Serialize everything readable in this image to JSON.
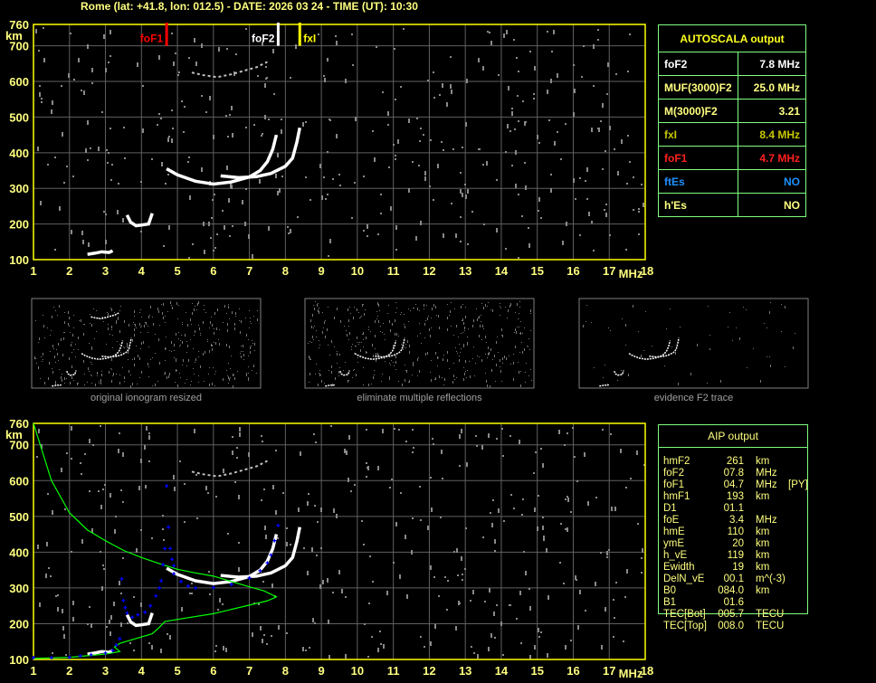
{
  "title": "Rome (lat: +41.8, lon: 012.5) - DATE: 2026 03 24 - TIME (UT): 10:30",
  "colors": {
    "axis": "#ffff00",
    "grid": "#606060",
    "tick_text": "#ffff80",
    "trace": "#ffffff",
    "profile": "#00ff00",
    "aip_points": "#0000ff",
    "foF1_marker": "#ff0000",
    "foF2_marker": "#ffffff",
    "fxI_marker": "#ffff00",
    "table_border": "#80ff80"
  },
  "autoscala": {
    "title": "AUTOSCALA output",
    "rows": [
      {
        "label": "foF2",
        "value": "7.8 MHz",
        "color": "#ffffff"
      },
      {
        "label": "MUF(3000)F2",
        "value": "25.0 MHz",
        "color": "#ffff80"
      },
      {
        "label": "M(3000)F2",
        "value": "3.21",
        "color": "#ffff80"
      },
      {
        "label": "fxI",
        "value": "8.4 MHz",
        "color": "#c8c800"
      },
      {
        "label": "foF1",
        "value": "4.7 MHz",
        "color": "#ff2020"
      },
      {
        "label": "ftEs",
        "value": "NO",
        "color": "#1e90ff"
      },
      {
        "label": "h'Es",
        "value": "NO",
        "color": "#ffff80"
      }
    ]
  },
  "aip": {
    "title": "AIP output",
    "rows": [
      {
        "name": "hmF2",
        "value": "261",
        "unit": "km",
        "note": ""
      },
      {
        "name": "foF2",
        "value": "07.8",
        "unit": "MHz",
        "note": ""
      },
      {
        "name": "foF1",
        "value": "04.7",
        "unit": "MHz",
        "note": "[PY]"
      },
      {
        "name": "hmF1",
        "value": "193",
        "unit": "km",
        "note": ""
      },
      {
        "name": "D1",
        "value": "01.1",
        "unit": "",
        "note": ""
      },
      {
        "name": "foE",
        "value": "3.4",
        "unit": "MHz",
        "note": ""
      },
      {
        "name": "hmE",
        "value": "110",
        "unit": "km",
        "note": ""
      },
      {
        "name": "ymE",
        "value": "20",
        "unit": "km",
        "note": ""
      },
      {
        "name": "h_vE",
        "value": "119",
        "unit": "km",
        "note": ""
      },
      {
        "name": "Ewidth",
        "value": "19",
        "unit": "km",
        "note": ""
      },
      {
        "name": "DelN_vE",
        "value": "00.1",
        "unit": "m^(-3)",
        "note": ""
      },
      {
        "name": "B0",
        "value": "084.0",
        "unit": "km",
        "note": ""
      },
      {
        "name": "B1",
        "value": "01.6",
        "unit": "",
        "note": ""
      },
      {
        "name": "TEC[Bot]",
        "value": "005.7",
        "unit": "TECU",
        "note": ""
      },
      {
        "name": "TEC[Top]",
        "value": "008.0",
        "unit": "TECU",
        "note": ""
      }
    ]
  },
  "thumbnails": [
    {
      "caption": "original ionogram resized"
    },
    {
      "caption": "eliminate multiple reflections"
    },
    {
      "caption": "evidence F2 trace"
    }
  ],
  "chart_data": [
    {
      "type": "scatter",
      "xlabel": "MHz",
      "ylabel": "km",
      "xlim": [
        1,
        18
      ],
      "ylim": [
        100,
        760
      ],
      "x_ticks": [
        "1",
        "2",
        "3",
        "4",
        "5",
        "6",
        "7",
        "8",
        "9",
        "10",
        "11",
        "12",
        "13",
        "14",
        "15",
        "16",
        "17",
        "18"
      ],
      "y_ticks": [
        "100",
        "200",
        "300",
        "400",
        "500",
        "600",
        "700",
        "760"
      ],
      "grid": true,
      "markers": [
        {
          "label": "foF1",
          "freq": 4.7,
          "color": "#ff0000"
        },
        {
          "label": "foF2",
          "freq": 7.8,
          "color": "#ffffff"
        },
        {
          "label": "fxI",
          "freq": 8.4,
          "color": "#ffff00"
        }
      ],
      "traces": [
        {
          "layer": "E",
          "points": [
            [
              2.5,
              115
            ],
            [
              2.7,
              118
            ],
            [
              2.9,
              122
            ],
            [
              3.1,
              120
            ],
            [
              3.2,
              125
            ]
          ]
        },
        {
          "layer": "F1",
          "points": [
            [
              3.6,
              225
            ],
            [
              3.7,
              205
            ],
            [
              3.85,
              195
            ],
            [
              4.0,
              197
            ],
            [
              4.2,
              200
            ],
            [
              4.3,
              230
            ]
          ]
        },
        {
          "layer": "F2-ordinary",
          "points": [
            [
              4.7,
              355
            ],
            [
              5.0,
              338
            ],
            [
              5.5,
              320
            ],
            [
              6.0,
              312
            ],
            [
              6.5,
              318
            ],
            [
              7.0,
              332
            ],
            [
              7.3,
              350
            ],
            [
              7.5,
              375
            ],
            [
              7.65,
              410
            ],
            [
              7.75,
              450
            ]
          ]
        },
        {
          "layer": "F2-extraordinary",
          "points": [
            [
              6.2,
              335
            ],
            [
              6.7,
              330
            ],
            [
              7.2,
              333
            ],
            [
              7.6,
              342
            ],
            [
              8.0,
              362
            ],
            [
              8.2,
              385
            ],
            [
              8.32,
              430
            ],
            [
              8.4,
              470
            ]
          ]
        },
        {
          "layer": "second-hop",
          "points": [
            [
              5.4,
              625
            ],
            [
              5.7,
              618
            ],
            [
              6.1,
              612
            ],
            [
              6.5,
              620
            ],
            [
              7.2,
              640
            ],
            [
              7.5,
              655
            ]
          ]
        }
      ]
    },
    {
      "type": "scatter",
      "xlabel": "MHz",
      "ylabel": "km",
      "xlim": [
        1,
        18
      ],
      "ylim": [
        100,
        760
      ],
      "x_ticks": [
        "1",
        "2",
        "3",
        "4",
        "5",
        "6",
        "7",
        "8",
        "9",
        "10",
        "11",
        "12",
        "13",
        "14",
        "15",
        "16",
        "17",
        "18"
      ],
      "y_ticks": [
        "100",
        "200",
        "300",
        "400",
        "500",
        "600",
        "700",
        "760"
      ],
      "grid": true,
      "traces": [
        {
          "layer": "E",
          "points": [
            [
              2.5,
              115
            ],
            [
              2.7,
              118
            ],
            [
              2.9,
              122
            ],
            [
              3.1,
              120
            ],
            [
              3.2,
              125
            ]
          ]
        },
        {
          "layer": "F1",
          "points": [
            [
              3.6,
              225
            ],
            [
              3.7,
              205
            ],
            [
              3.85,
              195
            ],
            [
              4.0,
              197
            ],
            [
              4.2,
              200
            ],
            [
              4.3,
              230
            ]
          ]
        },
        {
          "layer": "F2-ordinary",
          "points": [
            [
              4.7,
              355
            ],
            [
              5.0,
              338
            ],
            [
              5.5,
              320
            ],
            [
              6.0,
              312
            ],
            [
              6.5,
              318
            ],
            [
              7.0,
              332
            ],
            [
              7.3,
              350
            ],
            [
              7.5,
              375
            ],
            [
              7.65,
              410
            ],
            [
              7.75,
              450
            ]
          ]
        },
        {
          "layer": "F2-extraordinary",
          "points": [
            [
              6.2,
              335
            ],
            [
              6.7,
              330
            ],
            [
              7.2,
              333
            ],
            [
              7.6,
              342
            ],
            [
              8.0,
              362
            ],
            [
              8.2,
              385
            ],
            [
              8.32,
              430
            ],
            [
              8.4,
              470
            ]
          ]
        },
        {
          "layer": "second-hop",
          "points": [
            [
              5.4,
              625
            ],
            [
              5.7,
              618
            ],
            [
              6.1,
              612
            ],
            [
              6.5,
              620
            ],
            [
              7.2,
              640
            ],
            [
              7.5,
              655
            ]
          ]
        }
      ],
      "profile": [
        [
          1,
          760
        ],
        [
          1.5,
          600
        ],
        [
          2,
          510
        ],
        [
          2.5,
          462
        ],
        [
          3,
          432
        ],
        [
          3.5,
          405
        ],
        [
          4,
          385
        ],
        [
          4.5,
          368
        ],
        [
          5,
          352
        ],
        [
          5.5,
          342
        ],
        [
          6,
          333
        ],
        [
          6.5,
          318
        ],
        [
          7,
          303
        ],
        [
          7.4,
          292
        ],
        [
          7.75,
          275
        ],
        [
          7.5,
          264
        ],
        [
          7,
          252
        ],
        [
          6,
          228
        ],
        [
          5,
          212
        ],
        [
          4.65,
          206
        ],
        [
          4.5,
          190
        ],
        [
          4.3,
          172
        ],
        [
          3.8,
          157
        ],
        [
          3.4,
          145
        ],
        [
          3.25,
          135
        ],
        [
          3.4,
          122
        ],
        [
          3,
          115
        ],
        [
          2,
          106
        ],
        [
          1,
          103
        ]
      ],
      "aip_points": [
        [
          1,
          105
        ],
        [
          1.5,
          105
        ],
        [
          2,
          106
        ],
        [
          2.3,
          110
        ],
        [
          2.6,
          113
        ],
        [
          3,
          118
        ],
        [
          3.2,
          125
        ],
        [
          3.3,
          140
        ],
        [
          3.4,
          158
        ],
        [
          3.6,
          230
        ],
        [
          3.75,
          218
        ],
        [
          3.9,
          225
        ],
        [
          4.1,
          232
        ],
        [
          4.25,
          250
        ],
        [
          4.4,
          278
        ],
        [
          4.5,
          300
        ],
        [
          4.55,
          320
        ],
        [
          4.6,
          365
        ],
        [
          4.9,
          340
        ],
        [
          5.1,
          318
        ],
        [
          5.3,
          305
        ],
        [
          5.5,
          300
        ],
        [
          6.0,
          301
        ],
        [
          6.5,
          310
        ],
        [
          7.0,
          328
        ],
        [
          7.3,
          348
        ],
        [
          7.5,
          370
        ],
        [
          7.6,
          392
        ],
        [
          7.7,
          432
        ],
        [
          7.8,
          475
        ],
        [
          3.45,
          325
        ],
        [
          3.5,
          265
        ],
        [
          3.55,
          245
        ],
        [
          4.7,
          585
        ],
        [
          4.75,
          470
        ],
        [
          4.65,
          410
        ],
        [
          4.8,
          410
        ],
        [
          4.85,
          380
        ],
        [
          4.9,
          362
        ]
      ]
    }
  ]
}
